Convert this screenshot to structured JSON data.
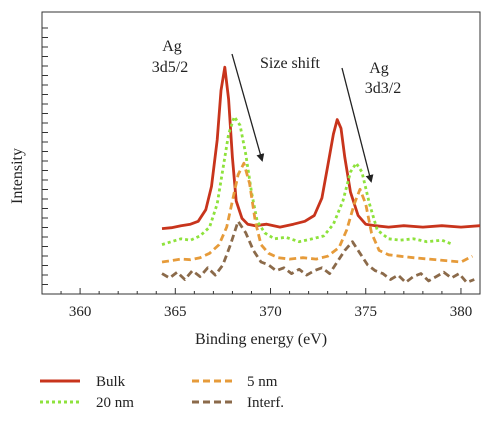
{
  "chart_data": {
    "type": "line",
    "xlabel": "Binding energy (eV)",
    "ylabel": "Intensity",
    "xlim": [
      358,
      381
    ],
    "x_ticks": [
      360,
      365,
      370,
      375,
      380
    ],
    "grid": false,
    "legend_position": "bottom",
    "annotations": {
      "peak1": [
        "Ag",
        "3d5/2"
      ],
      "shift": "Size shift",
      "peak2": [
        "Ag",
        "3d3/2"
      ]
    },
    "series": [
      {
        "name": "Bulk",
        "color": "#c8341c",
        "dash": "solid",
        "x": [
          364.3,
          364.8,
          365.3,
          365.8,
          366.2,
          366.6,
          366.9,
          367.2,
          367.4,
          367.6,
          367.8,
          368.0,
          368.2,
          368.5,
          368.8,
          369.2,
          369.8,
          370.5,
          371.2,
          371.8,
          372.3,
          372.7,
          373.0,
          373.3,
          373.5,
          373.7,
          373.9,
          374.2,
          374.6,
          375.0,
          375.5,
          376.2,
          377.0,
          378.0,
          379.0,
          380.0,
          381.0
        ],
        "y": [
          0.175,
          0.178,
          0.185,
          0.19,
          0.2,
          0.24,
          0.32,
          0.48,
          0.65,
          0.73,
          0.62,
          0.42,
          0.27,
          0.21,
          0.19,
          0.185,
          0.19,
          0.18,
          0.19,
          0.2,
          0.22,
          0.28,
          0.39,
          0.5,
          0.55,
          0.52,
          0.42,
          0.3,
          0.22,
          0.19,
          0.185,
          0.18,
          0.185,
          0.18,
          0.185,
          0.18,
          0.185
        ]
      },
      {
        "name": "20 nm",
        "color": "#8ee23c",
        "dash": "dotted",
        "x": [
          364.3,
          364.8,
          365.3,
          365.8,
          366.3,
          366.8,
          367.2,
          367.5,
          367.8,
          368.1,
          368.4,
          368.7,
          369.0,
          369.3,
          369.7,
          370.2,
          370.8,
          371.5,
          372.2,
          372.8,
          373.3,
          373.8,
          374.2,
          374.5,
          374.8,
          375.2,
          375.6,
          376.2,
          376.8,
          377.5,
          378.2,
          379.0,
          379.6
        ],
        "y": [
          0.12,
          0.13,
          0.14,
          0.135,
          0.15,
          0.18,
          0.26,
          0.38,
          0.5,
          0.56,
          0.53,
          0.43,
          0.3,
          0.2,
          0.16,
          0.14,
          0.145,
          0.13,
          0.14,
          0.15,
          0.19,
          0.27,
          0.37,
          0.4,
          0.37,
          0.26,
          0.17,
          0.14,
          0.135,
          0.14,
          0.13,
          0.135,
          0.12
        ]
      },
      {
        "name": "5 nm",
        "color": "#e69b3a",
        "dash": "dashed",
        "x": [
          364.3,
          364.8,
          365.3,
          365.8,
          366.3,
          366.8,
          367.3,
          367.7,
          368.0,
          368.3,
          368.6,
          368.9,
          369.2,
          369.5,
          369.9,
          370.4,
          371.0,
          371.7,
          372.4,
          373.0,
          373.6,
          374.0,
          374.4,
          374.7,
          375.0,
          375.3,
          375.7,
          376.2,
          376.8,
          377.5,
          378.3,
          379.2,
          380.0,
          380.6
        ],
        "y": [
          0.06,
          0.065,
          0.07,
          0.068,
          0.075,
          0.09,
          0.12,
          0.18,
          0.27,
          0.36,
          0.4,
          0.33,
          0.2,
          0.12,
          0.09,
          0.075,
          0.07,
          0.075,
          0.07,
          0.08,
          0.11,
          0.17,
          0.26,
          0.31,
          0.26,
          0.16,
          0.1,
          0.085,
          0.08,
          0.075,
          0.07,
          0.065,
          0.06,
          0.08
        ]
      },
      {
        "name": "Interf.",
        "color": "#8b6a4a",
        "dash": "dashed",
        "x": [
          364.3,
          364.7,
          365.1,
          365.5,
          365.9,
          366.3,
          366.7,
          367.1,
          367.5,
          367.9,
          368.3,
          368.7,
          369.1,
          369.5,
          369.9,
          370.3,
          370.7,
          371.1,
          371.5,
          371.9,
          372.3,
          372.7,
          373.1,
          373.5,
          373.9,
          374.3,
          374.7,
          375.1,
          375.5,
          375.9,
          376.3,
          376.7,
          377.1,
          377.5,
          377.9,
          378.3,
          378.7,
          379.1,
          379.5,
          379.9,
          380.3,
          380.7
        ],
        "y": [
          0.02,
          0.005,
          0.025,
          0.0,
          0.03,
          0.01,
          0.04,
          0.015,
          0.05,
          0.12,
          0.2,
          0.16,
          0.1,
          0.06,
          0.05,
          0.03,
          0.04,
          0.02,
          0.035,
          0.015,
          0.03,
          0.04,
          0.02,
          0.06,
          0.1,
          0.13,
          0.09,
          0.05,
          0.03,
          0.02,
          0.0,
          0.015,
          -0.01,
          0.01,
          0.02,
          -0.005,
          0.01,
          0.025,
          0.005,
          0.02,
          -0.01,
          0.0
        ]
      }
    ]
  }
}
